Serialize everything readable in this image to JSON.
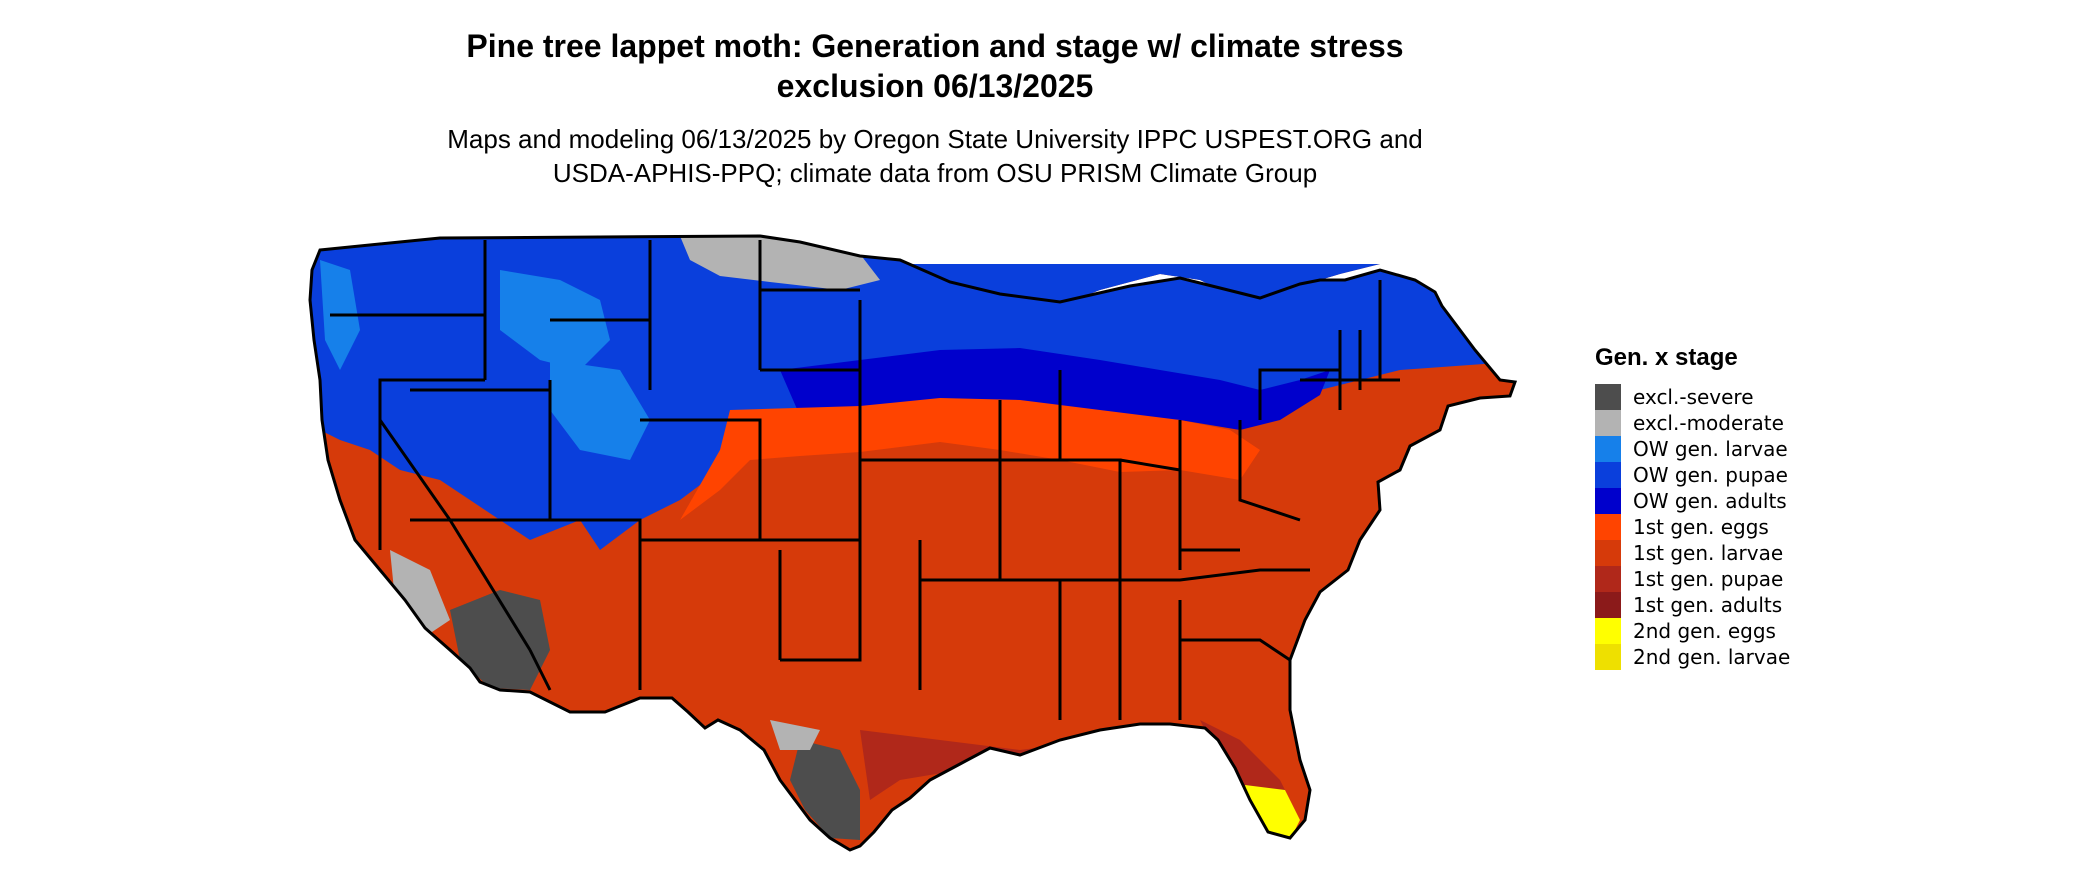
{
  "header": {
    "title_line1": "Pine tree lappet moth: Generation and stage w/ climate stress",
    "title_line2": "exclusion 06/13/2025",
    "subtitle_line1": "Maps and modeling 06/13/2025 by Oregon State University IPPC USPEST.ORG and",
    "subtitle_line2": "USDA-APHIS-PPQ; climate data from OSU PRISM Climate Group"
  },
  "legend": {
    "title": "Gen. x stage",
    "items": [
      {
        "label": "excl.-severe",
        "color": "#4d4d4d"
      },
      {
        "label": "excl.-moderate",
        "color": "#b3b3b3"
      },
      {
        "label": "OW gen. larvae",
        "color": "#1680ea"
      },
      {
        "label": "OW gen. pupae",
        "color": "#0a3fdc"
      },
      {
        "label": "OW gen. adults",
        "color": "#0000cc"
      },
      {
        "label": "1st gen. eggs",
        "color": "#ff4400"
      },
      {
        "label": "1st gen. larvae",
        "color": "#d63a0a"
      },
      {
        "label": "1st gen. pupae",
        "color": "#b0281a"
      },
      {
        "label": "1st gen. adults",
        "color": "#8b1a1a"
      },
      {
        "label": "2nd gen. eggs",
        "color": "#ffff00"
      },
      {
        "label": "2nd gen. larvae",
        "color": "#eee000"
      }
    ]
  }
}
